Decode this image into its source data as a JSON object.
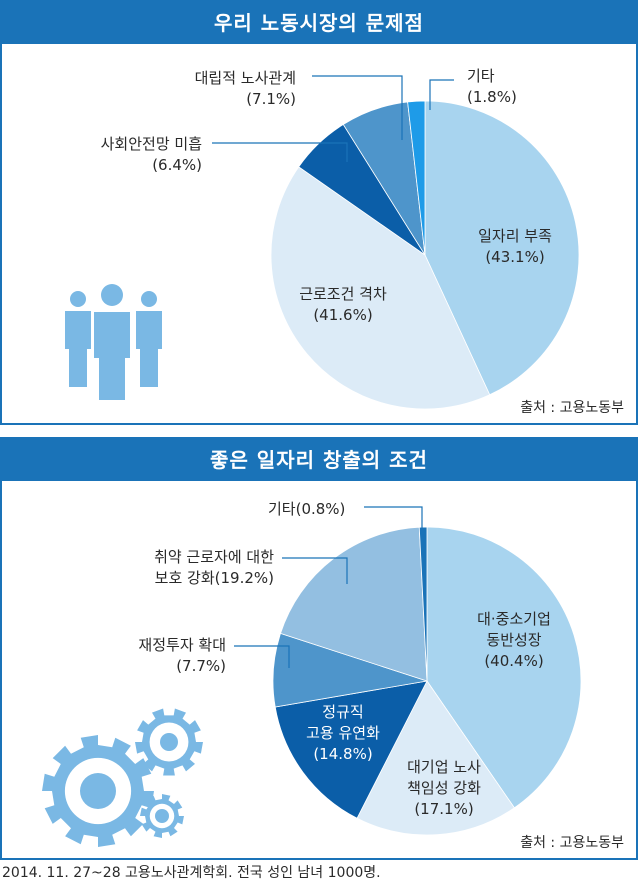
{
  "chart_data": [
    {
      "type": "pie",
      "title": "우리 노동시장의 문제점",
      "source": "출처 : 고용노동부",
      "slices": [
        {
          "label": "일자리 부족",
          "value": 43.1,
          "value_text": "(43.1%)",
          "color": "#a8d4ef"
        },
        {
          "label": "근로조건 격차",
          "value": 41.6,
          "value_text": "(41.6%)",
          "color": "#dcebf7"
        },
        {
          "label": "사회안전망 미흡",
          "value": 6.4,
          "value_text": "(6.4%)",
          "color": "#0b5ea8"
        },
        {
          "label": "대립적 노사관계",
          "value": 7.1,
          "value_text": "(7.1%)",
          "color": "#4e95cb"
        },
        {
          "label": "기타",
          "value": 1.8,
          "value_text": "(1.8%)",
          "color": "#1e9be8"
        }
      ]
    },
    {
      "type": "pie",
      "title": "좋은 일자리 창출의 조건",
      "source": "출처 : 고용노동부",
      "slices": [
        {
          "label": "대·중소기업 동반성장",
          "lines": [
            "대·중소기업",
            "동반성장"
          ],
          "value": 40.4,
          "value_text": "(40.4%)",
          "color": "#a8d4ef"
        },
        {
          "label": "대기업 노사 책임성 강화",
          "lines": [
            "대기업 노사",
            "책임성 강화"
          ],
          "value": 17.1,
          "value_text": "(17.1%)",
          "color": "#dcebf7"
        },
        {
          "label": "정규직 고용 유연화",
          "lines": [
            "정규직",
            "고용 유연화"
          ],
          "value": 14.8,
          "value_text": "(14.8%)",
          "color": "#0b5ea8"
        },
        {
          "label": "재정투자 확대",
          "lines": [
            "재정투자 확대"
          ],
          "value": 7.7,
          "value_text": "(7.7%)",
          "color": "#4e95cb"
        },
        {
          "label": "취약 근로자에 대한 보호 강화",
          "lines": [
            "취약 근로자에 대한",
            "보호 강화(19.2%)"
          ],
          "value": 19.2,
          "value_text": "",
          "color": "#93bfe1"
        },
        {
          "label": "기타",
          "lines": [
            "기타(0.8%)"
          ],
          "value": 0.8,
          "value_text": "",
          "color": "#1a73b8"
        }
      ]
    }
  ],
  "footnote": "2014. 11. 27~28 고용노사관계학회. 전국 성인 남녀 1000명.",
  "colors": {
    "header": "#1a73b8",
    "icon": "#7ab8e4"
  },
  "icons": [
    "people-icon",
    "gears-icon"
  ]
}
